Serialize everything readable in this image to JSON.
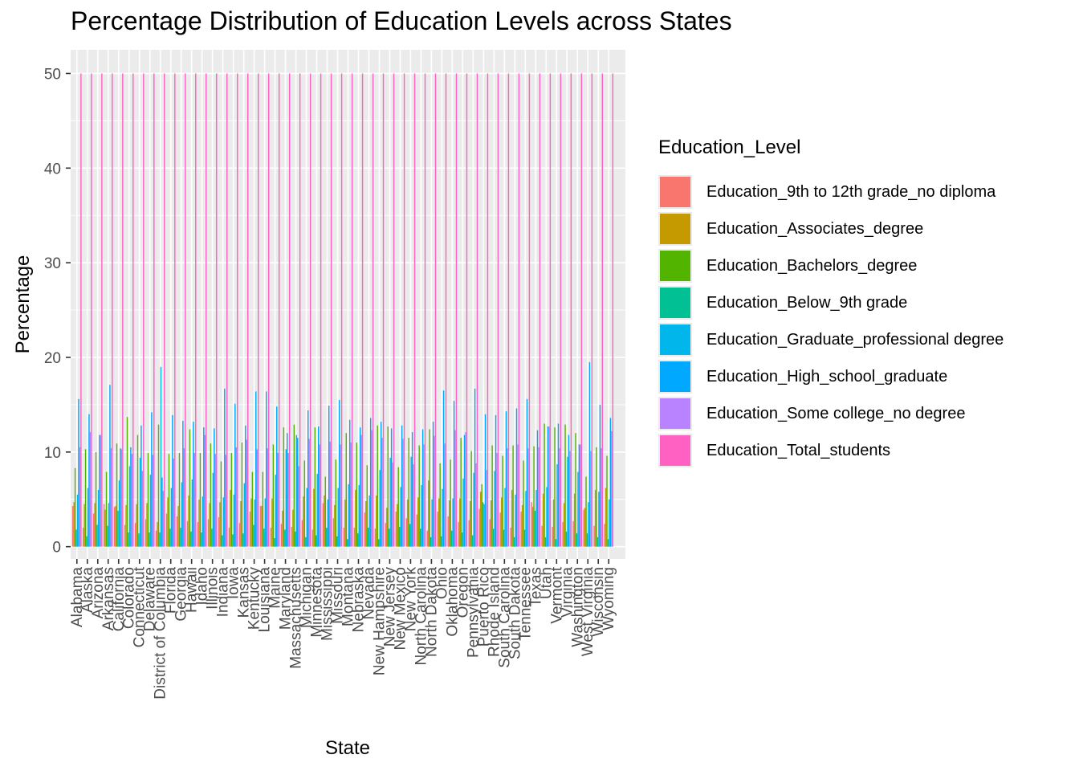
{
  "chart_data": {
    "type": "bar",
    "title": "Percentage Distribution of Education Levels across States",
    "xlabel": "State",
    "ylabel": "Percentage",
    "ylim": [
      -1.3,
      52.5
    ],
    "yticks": [
      0,
      10,
      20,
      30,
      40,
      50
    ],
    "legend_title": "Education_Level",
    "legend_position": "right",
    "grid": true,
    "categories": [
      "Alabama",
      "Alaska",
      "Arizona",
      "Arkansas",
      "California",
      "Colorado",
      "Connecticut",
      "Delaware",
      "District of Columbia",
      "Florida",
      "Georgia",
      "Hawaii",
      "Idaho",
      "Illinois",
      "Indiana",
      "Iowa",
      "Kansas",
      "Kentucky",
      "Louisiana",
      "Maine",
      "Maryland",
      "Massachusetts",
      "Michigan",
      "Minnesota",
      "Mississippi",
      "Missouri",
      "Montana",
      "Nebraska",
      "Nevada",
      "New Hampshire",
      "New Jersey",
      "New Mexico",
      "New York",
      "North Carolina",
      "North Dakota",
      "Ohio",
      "Oklahoma",
      "Oregon",
      "Pennsylvania",
      "Puerto Rico",
      "Rhode Island",
      "South Carolina",
      "South Dakota",
      "Tennessee",
      "Texas",
      "Utah",
      "Vermont",
      "Virginia",
      "Washington",
      "West Virginia",
      "Wisconsin",
      "Wyoming"
    ],
    "series": [
      {
        "name": "Education_9th to 12th grade_no diploma",
        "color": "#F8766D",
        "values": [
          4.3,
          2.0,
          3.5,
          4.5,
          4.2,
          2.3,
          2.5,
          2.9,
          1.7,
          3.5,
          3.2,
          2.7,
          2.6,
          2.9,
          3.1,
          2.0,
          2.5,
          3.7,
          4.3,
          2.0,
          2.4,
          2.1,
          2.8,
          1.8,
          4.6,
          3.0,
          2.0,
          2.0,
          3.6,
          1.9,
          2.5,
          3.7,
          3.0,
          3.4,
          1.7,
          3.7,
          3.2,
          2.6,
          2.8,
          4.0,
          2.9,
          3.6,
          2.0,
          3.7,
          4.7,
          2.2,
          2.1,
          2.6,
          2.7,
          3.9,
          2.2,
          2.4
        ]
      },
      {
        "name": "Education_Associates_degree",
        "color": "#C49A00",
        "values": [
          4.7,
          4.5,
          4.6,
          3.9,
          4.3,
          4.4,
          4.5,
          4.6,
          2.6,
          5.2,
          4.3,
          5.4,
          5.0,
          4.6,
          4.7,
          6.0,
          4.8,
          5.1,
          4.3,
          5.1,
          3.8,
          3.9,
          5.3,
          6.1,
          5.4,
          4.4,
          5.0,
          6.0,
          4.8,
          5.4,
          4.1,
          4.5,
          5.0,
          5.2,
          7.0,
          5.1,
          4.9,
          5.1,
          4.8,
          5.8,
          4.9,
          5.2,
          6.0,
          4.4,
          4.2,
          5.6,
          5.0,
          4.6,
          5.6,
          4.1,
          6.0,
          6.2
        ]
      },
      {
        "name": "Education_Bachelors_degree",
        "color": "#53B400",
        "values": [
          8.3,
          10.3,
          10.0,
          7.9,
          10.9,
          13.7,
          11.8,
          9.9,
          12.9,
          9.8,
          9.9,
          12.4,
          9.9,
          10.9,
          9.0,
          9.9,
          11.0,
          7.9,
          7.9,
          10.8,
          12.6,
          12.9,
          9.1,
          12.6,
          7.4,
          9.2,
          12.0,
          11.0,
          8.6,
          12.8,
          12.7,
          8.4,
          11.5,
          10.7,
          12.4,
          8.8,
          9.2,
          11.5,
          10.1,
          6.6,
          10.7,
          9.6,
          10.7,
          9.1,
          10.6,
          13.0,
          12.6,
          12.9,
          12.0,
          7.4,
          10.5,
          9.6
        ]
      },
      {
        "name": "Education_Below_9th grade",
        "color": "#00C094",
        "values": [
          1.8,
          1.1,
          2.3,
          2.2,
          3.8,
          1.5,
          1.4,
          1.5,
          1.5,
          1.9,
          2.0,
          1.6,
          1.5,
          1.9,
          1.2,
          1.3,
          1.4,
          2.3,
          1.9,
          0.9,
          1.8,
          1.6,
          1.0,
          1.2,
          2.0,
          1.1,
          0.8,
          1.4,
          2.0,
          0.8,
          1.9,
          2.1,
          2.4,
          1.9,
          1.0,
          1.1,
          1.7,
          1.5,
          1.2,
          4.7,
          1.9,
          1.8,
          1.0,
          1.8,
          3.8,
          1.0,
          0.8,
          1.6,
          1.4,
          1.4,
          1.0,
          0.8
        ]
      },
      {
        "name": "Education_Graduate_professional degree",
        "color": "#00B6EB",
        "values": [
          5.5,
          6.2,
          6.0,
          4.6,
          7.0,
          8.5,
          9.4,
          7.6,
          19.0,
          6.2,
          6.8,
          7.1,
          5.3,
          7.8,
          5.2,
          5.5,
          6.7,
          5.0,
          5.1,
          7.6,
          10.3,
          11.8,
          6.2,
          7.7,
          5.0,
          6.2,
          6.6,
          6.5,
          5.4,
          8.1,
          9.4,
          6.3,
          9.5,
          6.5,
          5.0,
          6.1,
          5.1,
          7.2,
          7.8,
          4.5,
          8.0,
          6.2,
          5.5,
          5.9,
          6.0,
          6.3,
          8.7,
          9.5,
          7.9,
          4.7,
          5.8,
          5.0
        ]
      },
      {
        "name": "Education_High_school_graduate",
        "color": "#00A9FF",
        "values": [
          15.6,
          14.0,
          11.8,
          17.1,
          10.4,
          10.5,
          12.8,
          14.2,
          7.3,
          13.9,
          13.3,
          13.2,
          12.6,
          12.5,
          16.7,
          15.1,
          12.8,
          16.4,
          16.4,
          14.8,
          12.0,
          11.5,
          14.4,
          12.7,
          14.9,
          15.5,
          13.4,
          12.6,
          13.6,
          13.2,
          12.5,
          12.8,
          12.1,
          12.4,
          13.2,
          16.5,
          15.4,
          11.8,
          16.7,
          14.0,
          13.9,
          14.3,
          14.6,
          15.6,
          12.3,
          12.7,
          13.0,
          11.8,
          10.8,
          19.5,
          15.0,
          13.6
        ]
      },
      {
        "name": "Education_Some college_no degree",
        "color": "#B983FF",
        "values": [
          10.5,
          12.1,
          11.8,
          10.4,
          10.3,
          9.8,
          8.0,
          9.7,
          5.9,
          9.3,
          10.4,
          9.9,
          11.8,
          9.8,
          9.7,
          10.5,
          11.3,
          10.3,
          10.4,
          9.9,
          9.9,
          8.5,
          11.4,
          10.8,
          11.1,
          10.8,
          11.0,
          11.8,
          12.3,
          11.5,
          8.9,
          11.4,
          8.7,
          10.8,
          11.7,
          10.9,
          12.3,
          12.1,
          8.8,
          8.1,
          9.9,
          10.4,
          10.8,
          10.4,
          10.5,
          12.7,
          10.4,
          10.1,
          10.8,
          10.1,
          10.4,
          12.2
        ]
      },
      {
        "name": "Education_Total_students",
        "color": "#FF61C3",
        "values": [
          50,
          50,
          50,
          50,
          50,
          50,
          50,
          50,
          50,
          50,
          50,
          50,
          50,
          50,
          50,
          50,
          50,
          50,
          50,
          50,
          50,
          50,
          50,
          50,
          50,
          50,
          50,
          50,
          50,
          50,
          50,
          50,
          50,
          50,
          50,
          50,
          50,
          50,
          50,
          50,
          50,
          50,
          50,
          50,
          50,
          50,
          50,
          50,
          50,
          50,
          50,
          50
        ]
      }
    ]
  }
}
